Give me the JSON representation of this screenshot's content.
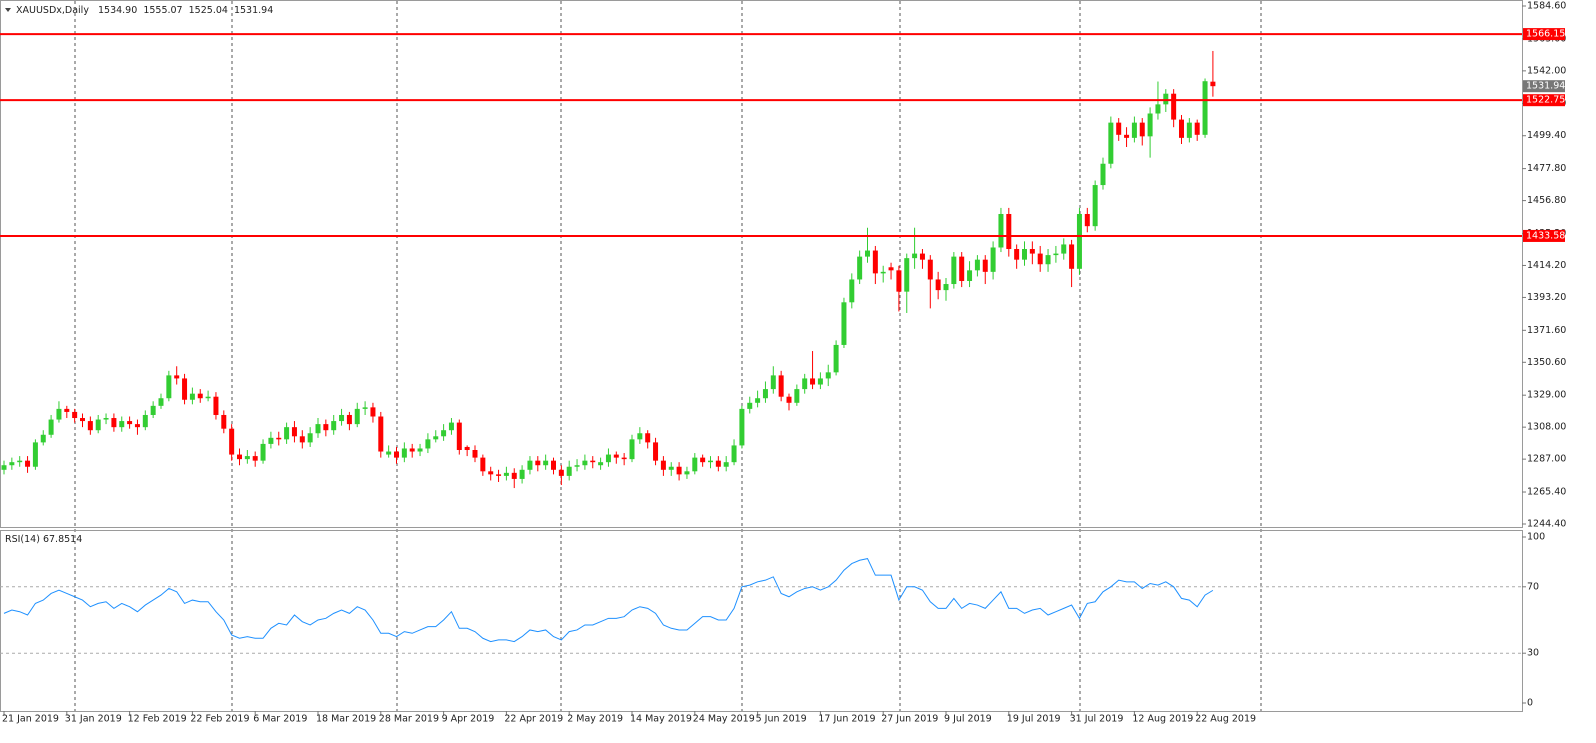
{
  "chart_data": {
    "type": "candlestick",
    "title": "XAUUSDx,Daily",
    "last_bar_labels": [
      "1534.90",
      "1555.07",
      "1525.04",
      "1531.94"
    ],
    "categories": [
      "21 Jan 2019",
      null,
      null,
      null,
      null,
      null,
      null,
      null,
      "31 Jan 2019",
      null,
      null,
      null,
      null,
      null,
      null,
      null,
      "12 Feb 2019",
      null,
      null,
      null,
      null,
      null,
      null,
      null,
      "22 Feb 2019",
      null,
      null,
      null,
      null,
      null,
      null,
      null,
      "6 Mar 2019",
      null,
      null,
      null,
      null,
      null,
      null,
      null,
      "18 Mar 2019",
      null,
      null,
      null,
      null,
      null,
      null,
      null,
      "28 Mar 2019",
      null,
      null,
      null,
      null,
      null,
      null,
      null,
      "9 Apr 2019",
      null,
      null,
      null,
      null,
      null,
      null,
      null,
      "22 Apr 2019",
      null,
      null,
      null,
      null,
      null,
      null,
      null,
      "2 May 2019",
      null,
      null,
      null,
      null,
      null,
      null,
      null,
      "14 May 2019",
      null,
      null,
      null,
      null,
      null,
      null,
      null,
      "24 May 2019",
      null,
      null,
      null,
      null,
      null,
      null,
      null,
      "5 Jun 2019",
      null,
      null,
      null,
      null,
      null,
      null,
      null,
      "17 Jun 2019",
      null,
      null,
      null,
      null,
      null,
      null,
      null,
      "27 Jun 2019",
      null,
      null,
      null,
      null,
      null,
      null,
      null,
      "9 Jul 2019",
      null,
      null,
      null,
      null,
      null,
      null,
      null,
      "19 Jul 2019",
      null,
      null,
      null,
      null,
      null,
      null,
      null,
      "31 Jul 2019",
      null,
      null,
      null,
      null,
      null,
      null,
      null,
      "12 Aug 2019",
      null,
      null,
      null,
      null,
      null,
      null,
      null,
      "22 Aug 2019",
      null,
      null
    ],
    "open": [
      1280,
      1283,
      1285,
      1286,
      1282,
      1298,
      1303,
      1313,
      1320,
      1318,
      1314,
      1312,
      1306,
      1313,
      1314,
      1308,
      1312,
      1310,
      1308,
      1316,
      1322,
      1327,
      1342,
      1340,
      1326,
      1330,
      1327,
      1328,
      1316,
      1307,
      1290,
      1287,
      1289,
      1286,
      1297,
      1301,
      1300,
      1308,
      1302,
      1298,
      1304,
      1310,
      1306,
      1312,
      1316,
      1310,
      1320,
      1321,
      1315,
      1290,
      1292,
      1288,
      1294,
      1292,
      1294,
      1300,
      1302,
      1306,
      1311,
      1295,
      1293,
      1288,
      1279,
      1277,
      1276,
      1278,
      1274,
      1280,
      1286,
      1283,
      1286,
      1280,
      1276,
      1282,
      1283,
      1286,
      1283,
      1285,
      1290,
      1288,
      1287,
      1300,
      1304,
      1298,
      1286,
      1280,
      1282,
      1277,
      1279,
      1288,
      1285,
      1286,
      1282,
      1285,
      1296,
      1320,
      1324,
      1327,
      1333,
      1342,
      1328,
      1324,
      1333,
      1340,
      1336,
      1340,
      1344,
      1362,
      1390,
      1405,
      1420,
      1424,
      1409,
      1413,
      1411,
      1397,
      1419,
      1422,
      1418,
      1405,
      1398,
      1402,
      1420,
      1404,
      1411,
      1418,
      1410,
      1426,
      1448,
      1425,
      1418,
      1425,
      1422,
      1415,
      1421,
      1422,
      1428,
      1412,
      1448,
      1440,
      1467,
      1481,
      1508,
      1500,
      1498,
      1508,
      1499,
      1514,
      1520,
      1527,
      1510,
      1498,
      1508,
      1500,
      1534.9
    ],
    "high": [
      1286,
      1288,
      1289,
      1289,
      1300,
      1306,
      1316,
      1325,
      1322,
      1320,
      1317,
      1315,
      1316,
      1317,
      1317,
      1315,
      1315,
      1313,
      1319,
      1325,
      1330,
      1345,
      1348,
      1343,
      1334,
      1333,
      1332,
      1331,
      1319,
      1310,
      1294,
      1293,
      1292,
      1300,
      1305,
      1305,
      1311,
      1312,
      1306,
      1308,
      1314,
      1313,
      1316,
      1320,
      1318,
      1324,
      1325,
      1324,
      1318,
      1296,
      1295,
      1298,
      1297,
      1297,
      1304,
      1306,
      1310,
      1314,
      1313,
      1296,
      1296,
      1290,
      1282,
      1280,
      1282,
      1281,
      1283,
      1289,
      1289,
      1290,
      1288,
      1283,
      1286,
      1287,
      1290,
      1289,
      1288,
      1294,
      1292,
      1291,
      1303,
      1308,
      1306,
      1301,
      1289,
      1285,
      1285,
      1282,
      1291,
      1290,
      1289,
      1289,
      1289,
      1300,
      1322,
      1328,
      1332,
      1338,
      1348,
      1345,
      1330,
      1336,
      1343,
      1358,
      1344,
      1349,
      1365,
      1393,
      1409,
      1424,
      1439,
      1427,
      1414,
      1416,
      1414,
      1422,
      1439,
      1425,
      1421,
      1410,
      1406,
      1423,
      1423,
      1417,
      1421,
      1421,
      1430,
      1452,
      1452,
      1428,
      1430,
      1430,
      1427,
      1425,
      1427,
      1432,
      1431,
      1452,
      1452,
      1470,
      1485,
      1512,
      1511,
      1505,
      1512,
      1511,
      1518,
      1535,
      1530,
      1530,
      1513,
      1511,
      1510,
      1537,
      1555.07
    ],
    "low": [
      1277,
      1280,
      1282,
      1278,
      1280,
      1296,
      1301,
      1311,
      1314,
      1311,
      1308,
      1303,
      1304,
      1310,
      1305,
      1305,
      1307,
      1303,
      1306,
      1314,
      1320,
      1325,
      1336,
      1323,
      1323,
      1324,
      1325,
      1313,
      1304,
      1286,
      1283,
      1284,
      1282,
      1284,
      1294,
      1296,
      1297,
      1298,
      1294,
      1295,
      1301,
      1302,
      1303,
      1309,
      1306,
      1308,
      1316,
      1311,
      1288,
      1288,
      1284,
      1285,
      1288,
      1289,
      1291,
      1298,
      1299,
      1303,
      1290,
      1289,
      1285,
      1276,
      1273,
      1272,
      1273,
      1268,
      1271,
      1277,
      1279,
      1280,
      1277,
      1270,
      1273,
      1279,
      1280,
      1281,
      1280,
      1282,
      1284,
      1283,
      1285,
      1297,
      1294,
      1283,
      1276,
      1276,
      1273,
      1274,
      1277,
      1282,
      1281,
      1279,
      1279,
      1283,
      1294,
      1317,
      1321,
      1324,
      1330,
      1325,
      1319,
      1322,
      1330,
      1333,
      1333,
      1335,
      1342,
      1360,
      1386,
      1402,
      1416,
      1402,
      1403,
      1405,
      1384,
      1383,
      1412,
      1412,
      1386,
      1392,
      1391,
      1399,
      1400,
      1400,
      1407,
      1402,
      1405,
      1423,
      1420,
      1412,
      1414,
      1415,
      1410,
      1410,
      1416,
      1418,
      1400,
      1408,
      1436,
      1437,
      1464,
      1478,
      1496,
      1492,
      1495,
      1493,
      1485,
      1510,
      1515,
      1505,
      1494,
      1495,
      1496,
      1498,
      1525.04
    ],
    "close": [
      1283,
      1285,
      1286,
      1282,
      1298,
      1303,
      1313,
      1320,
      1318,
      1314,
      1312,
      1306,
      1313,
      1314,
      1308,
      1312,
      1310,
      1308,
      1316,
      1322,
      1327,
      1342,
      1340,
      1326,
      1330,
      1327,
      1328,
      1316,
      1307,
      1290,
      1287,
      1289,
      1286,
      1297,
      1301,
      1300,
      1308,
      1302,
      1298,
      1304,
      1310,
      1306,
      1312,
      1316,
      1310,
      1320,
      1321,
      1315,
      1292,
      1292,
      1288,
      1294,
      1292,
      1294,
      1300,
      1302,
      1306,
      1311,
      1293,
      1293,
      1288,
      1279,
      1277,
      1276,
      1278,
      1274,
      1280,
      1286,
      1283,
      1286,
      1280,
      1276,
      1282,
      1283,
      1286,
      1285,
      1285,
      1290,
      1288,
      1287,
      1300,
      1304,
      1298,
      1286,
      1280,
      1282,
      1277,
      1279,
      1288,
      1285,
      1286,
      1282,
      1285,
      1296,
      1320,
      1324,
      1327,
      1333,
      1342,
      1328,
      1324,
      1333,
      1340,
      1336,
      1340,
      1344,
      1362,
      1390,
      1405,
      1420,
      1424,
      1409,
      1410,
      1411,
      1397,
      1419,
      1422,
      1418,
      1405,
      1398,
      1402,
      1420,
      1404,
      1411,
      1418,
      1410,
      1426,
      1448,
      1425,
      1418,
      1425,
      1422,
      1415,
      1421,
      1422,
      1428,
      1412,
      1448,
      1440,
      1467,
      1481,
      1508,
      1500,
      1498,
      1508,
      1499,
      1514,
      1520,
      1527,
      1510,
      1498,
      1508,
      1500,
      1535.2,
      1531.94
    ],
    "up_color": "#32cd32",
    "down_color": "#ff0000",
    "ylim": [
      1244.4,
      1584.6
    ],
    "yticks": [
      {
        "value": 1584.6,
        "label": "1584.60"
      },
      {
        "value": 1563.0,
        "label": "1563.00"
      },
      {
        "value": 1542.0,
        "label": "1542.00"
      },
      {
        "value": 1520.6,
        "label": "1520.60"
      },
      {
        "value": 1499.4,
        "label": "1499.40"
      },
      {
        "value": 1477.8,
        "label": "1477.80"
      },
      {
        "value": 1456.8,
        "label": "1456.80"
      },
      {
        "value": 1435.2,
        "label": "1435.20"
      },
      {
        "value": 1414.2,
        "label": "1414.20"
      },
      {
        "value": 1393.2,
        "label": "1393.20"
      },
      {
        "value": 1371.6,
        "label": "1371.60"
      },
      {
        "value": 1350.6,
        "label": "1350.60"
      },
      {
        "value": 1329.0,
        "label": "1329.00"
      },
      {
        "value": 1308.0,
        "label": "1308.00"
      },
      {
        "value": 1287.0,
        "label": "1287.00"
      },
      {
        "value": 1265.4,
        "label": "1265.40"
      },
      {
        "value": 1244.4,
        "label": "1244.40"
      }
    ],
    "levels": {
      "values": [
        1566.15,
        1522.75,
        1433.58
      ],
      "color": "#ff0000"
    },
    "rsi": {
      "type": "line",
      "name": "RSI(14)",
      "color": "#1e90ff",
      "values": [
        54,
        56,
        55,
        53,
        60,
        62,
        66,
        68,
        66,
        64,
        62,
        58,
        60,
        61,
        57,
        60,
        58,
        55,
        59,
        62,
        65,
        69,
        67,
        60,
        62,
        61,
        61,
        55,
        50,
        41,
        39,
        40,
        39,
        39,
        45,
        48,
        47,
        53,
        49,
        47,
        50,
        51,
        54,
        56,
        54,
        58,
        56,
        50,
        42,
        42,
        40,
        43,
        42,
        44,
        46,
        46,
        50,
        55,
        45,
        45,
        43,
        39,
        37,
        38,
        38,
        37,
        40,
        44,
        43,
        44,
        40,
        38,
        43,
        44,
        47,
        47,
        49,
        51,
        51,
        52,
        56,
        58,
        57,
        54,
        47,
        45,
        44,
        44,
        48,
        52,
        52,
        50,
        50,
        57,
        70,
        71,
        73,
        74,
        76,
        66,
        64,
        67,
        69,
        70,
        68,
        70,
        74,
        80,
        84,
        86,
        87,
        77,
        77,
        77,
        62,
        70,
        70,
        68,
        61,
        57,
        57,
        63,
        57,
        60,
        59,
        57,
        62,
        67,
        57,
        57,
        54,
        56,
        57,
        53,
        55,
        57,
        59,
        51,
        60,
        61,
        67,
        70,
        74,
        73,
        73,
        69,
        72,
        71,
        73,
        70,
        63,
        62,
        58,
        65,
        67.8514
      ],
      "ylim": [
        0,
        100
      ],
      "yticks": [
        0,
        30,
        70,
        100
      ]
    }
  }
}
